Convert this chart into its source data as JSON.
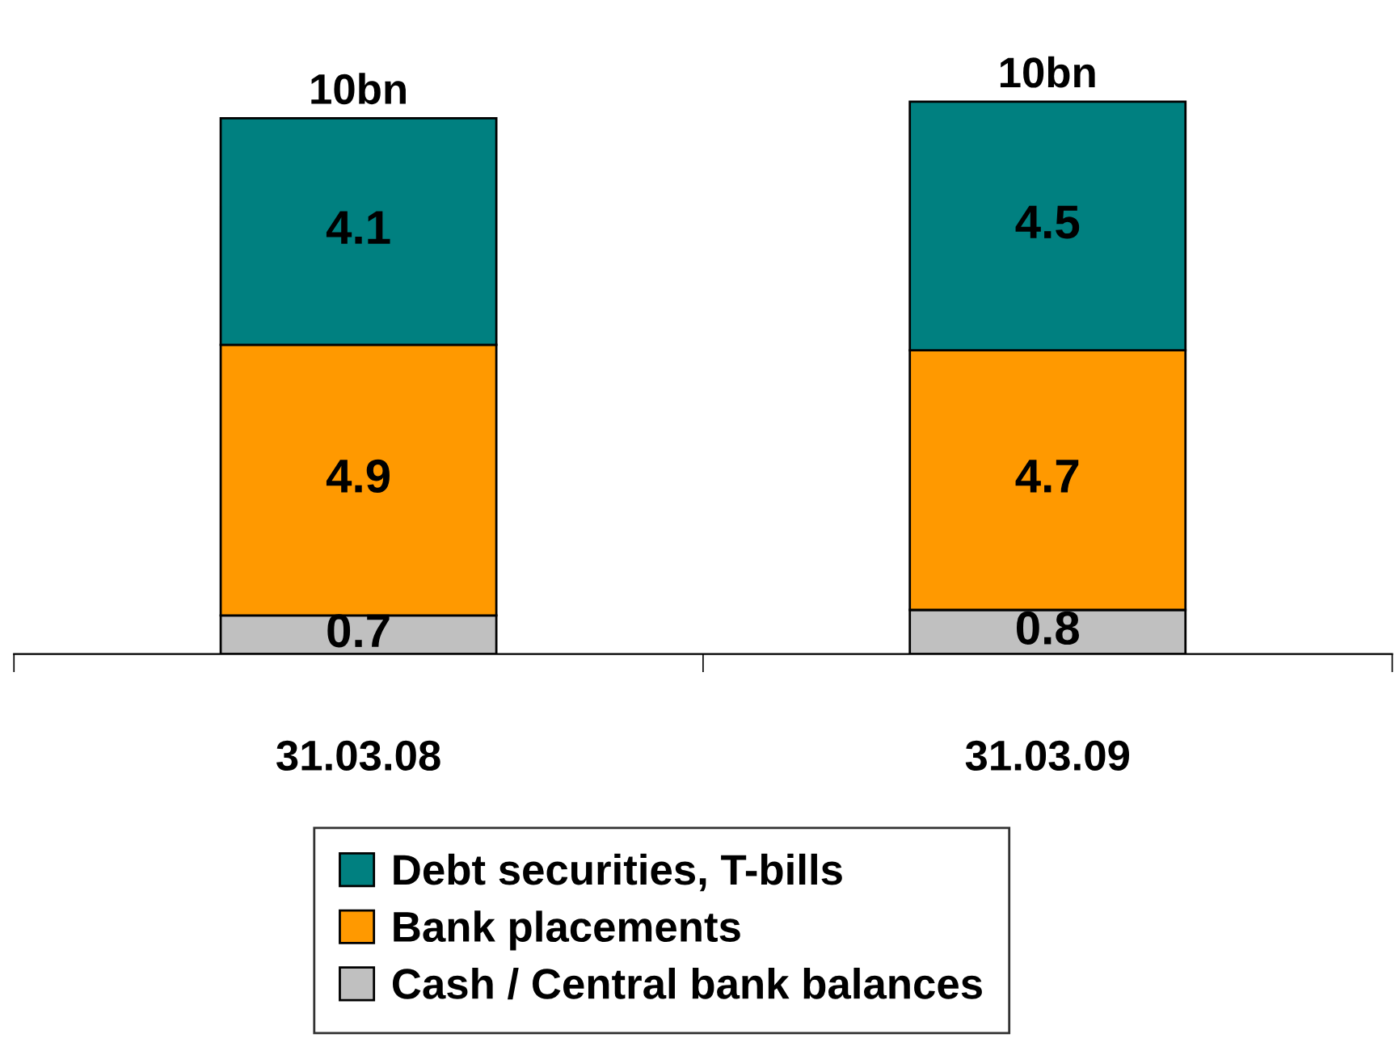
{
  "chart_data": {
    "type": "bar",
    "stacked": true,
    "categories": [
      "31.03.08",
      "31.03.09"
    ],
    "series": [
      {
        "name": "Cash / Central bank balances",
        "color": "#c0c0c0",
        "values": [
          0.7,
          0.8
        ]
      },
      {
        "name": "Bank placements",
        "color": "#ff9900",
        "values": [
          4.9,
          4.7
        ]
      },
      {
        "name": "Debt securities, T-bills",
        "color": "#008080",
        "values": [
          4.1,
          4.5
        ]
      }
    ],
    "data_labels": true,
    "totals": [
      "10bn",
      "10bn"
    ],
    "legend": "bottom",
    "grid": false
  }
}
